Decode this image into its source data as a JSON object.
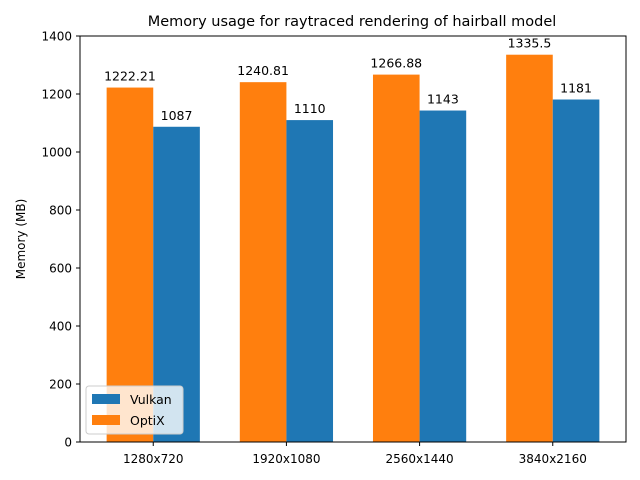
{
  "chart_data": {
    "type": "bar",
    "title": "Memory usage for raytraced rendering of hairball model",
    "xlabel": "",
    "ylabel": "Memory (MB)",
    "ylim": [
      0,
      1400
    ],
    "yticks": [
      0,
      200,
      400,
      600,
      800,
      1000,
      1200,
      1400
    ],
    "categories": [
      "1280x720",
      "1920x1080",
      "2560x1440",
      "3840x2160"
    ],
    "series": [
      {
        "name": "OptiX",
        "color": "#ff7f0e",
        "values": [
          1222.21,
          1240.81,
          1266.88,
          1335.5
        ],
        "labels": [
          "1222.21",
          "1240.81",
          "1266.88",
          "1335.5"
        ]
      },
      {
        "name": "Vulkan",
        "color": "#1f77b4",
        "values": [
          1087,
          1110,
          1143,
          1181
        ],
        "labels": [
          "1087",
          "1110",
          "1143",
          "1181"
        ]
      }
    ],
    "legend": {
      "position": "lower-left",
      "entries": [
        "Vulkan",
        "OptiX"
      ]
    },
    "grid": false
  }
}
